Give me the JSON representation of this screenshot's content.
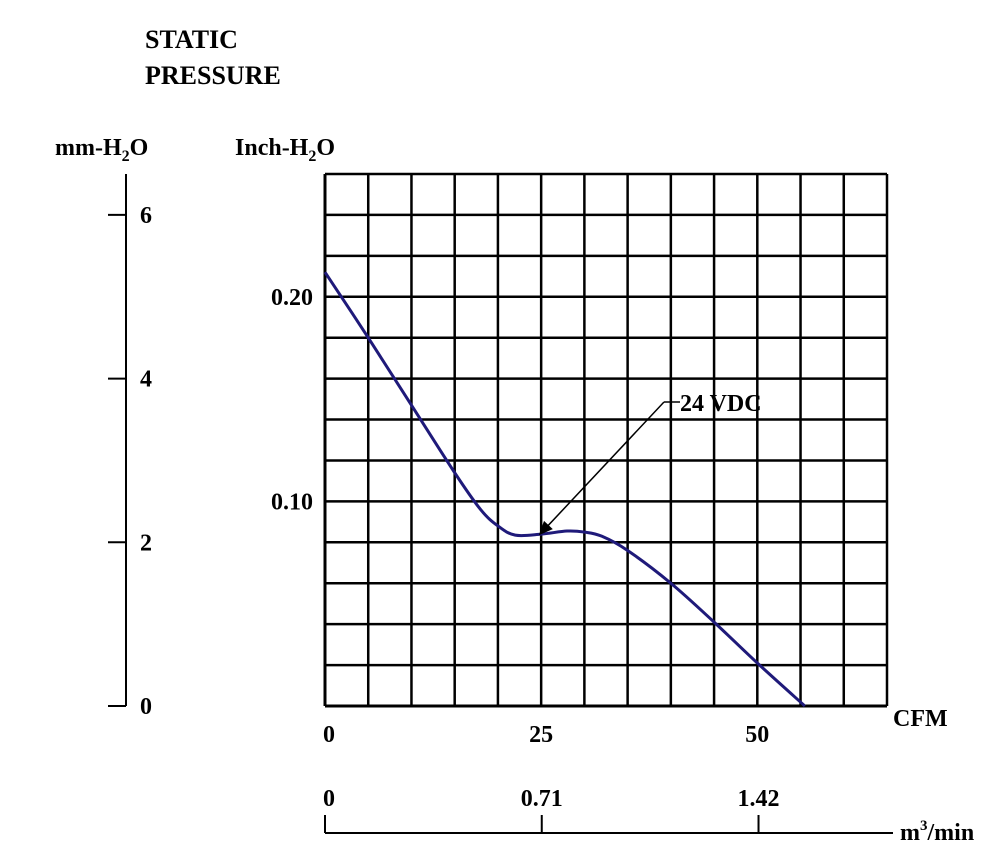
{
  "chart_data": {
    "type": "line",
    "title_lines": [
      "STATIC",
      "PRESSURE"
    ],
    "left_axis": {
      "label_main": "mm-H",
      "label_sub": "2",
      "label_end": "O",
      "ticks": [
        0,
        2,
        4,
        6
      ],
      "tick_labels": [
        "0",
        "2",
        "4",
        "6"
      ],
      "range": [
        0,
        6.5
      ]
    },
    "y_axis": {
      "label_main": "Inch-H",
      "label_sub": "2",
      "label_end": "O",
      "tick_labels": [
        "0.10",
        "0.20"
      ],
      "ticks": [
        0.1,
        0.2
      ],
      "range": [
        0,
        0.26
      ],
      "grid_step": 0.02
    },
    "x_axis": {
      "label": "CFM",
      "tick_labels": [
        "0",
        "25",
        "50"
      ],
      "ticks": [
        0,
        25,
        50
      ],
      "range": [
        0,
        65
      ],
      "grid_step": 5
    },
    "x2_axis": {
      "label_main": "m",
      "label_sup": "3",
      "label_end": "/min",
      "tick_labels": [
        "0",
        "0.71",
        "1.42"
      ],
      "ticks": [
        0,
        0.71,
        1.42
      ]
    },
    "grid": true,
    "annotation": {
      "text": "24 VDC",
      "points_to": [
        24.5,
        0.0825
      ]
    },
    "series": [
      {
        "name": "24 VDC",
        "color": "#1f1a7a",
        "x": [
          0,
          5,
          10,
          15,
          18,
          20,
          22,
          25,
          28,
          30,
          32,
          35,
          40,
          45,
          50,
          55.5
        ],
        "y": [
          0.212,
          0.18,
          0.147,
          0.114,
          0.096,
          0.088,
          0.0835,
          0.084,
          0.0855,
          0.085,
          0.083,
          0.076,
          0.06,
          0.041,
          0.021,
          0.0
        ]
      }
    ]
  }
}
